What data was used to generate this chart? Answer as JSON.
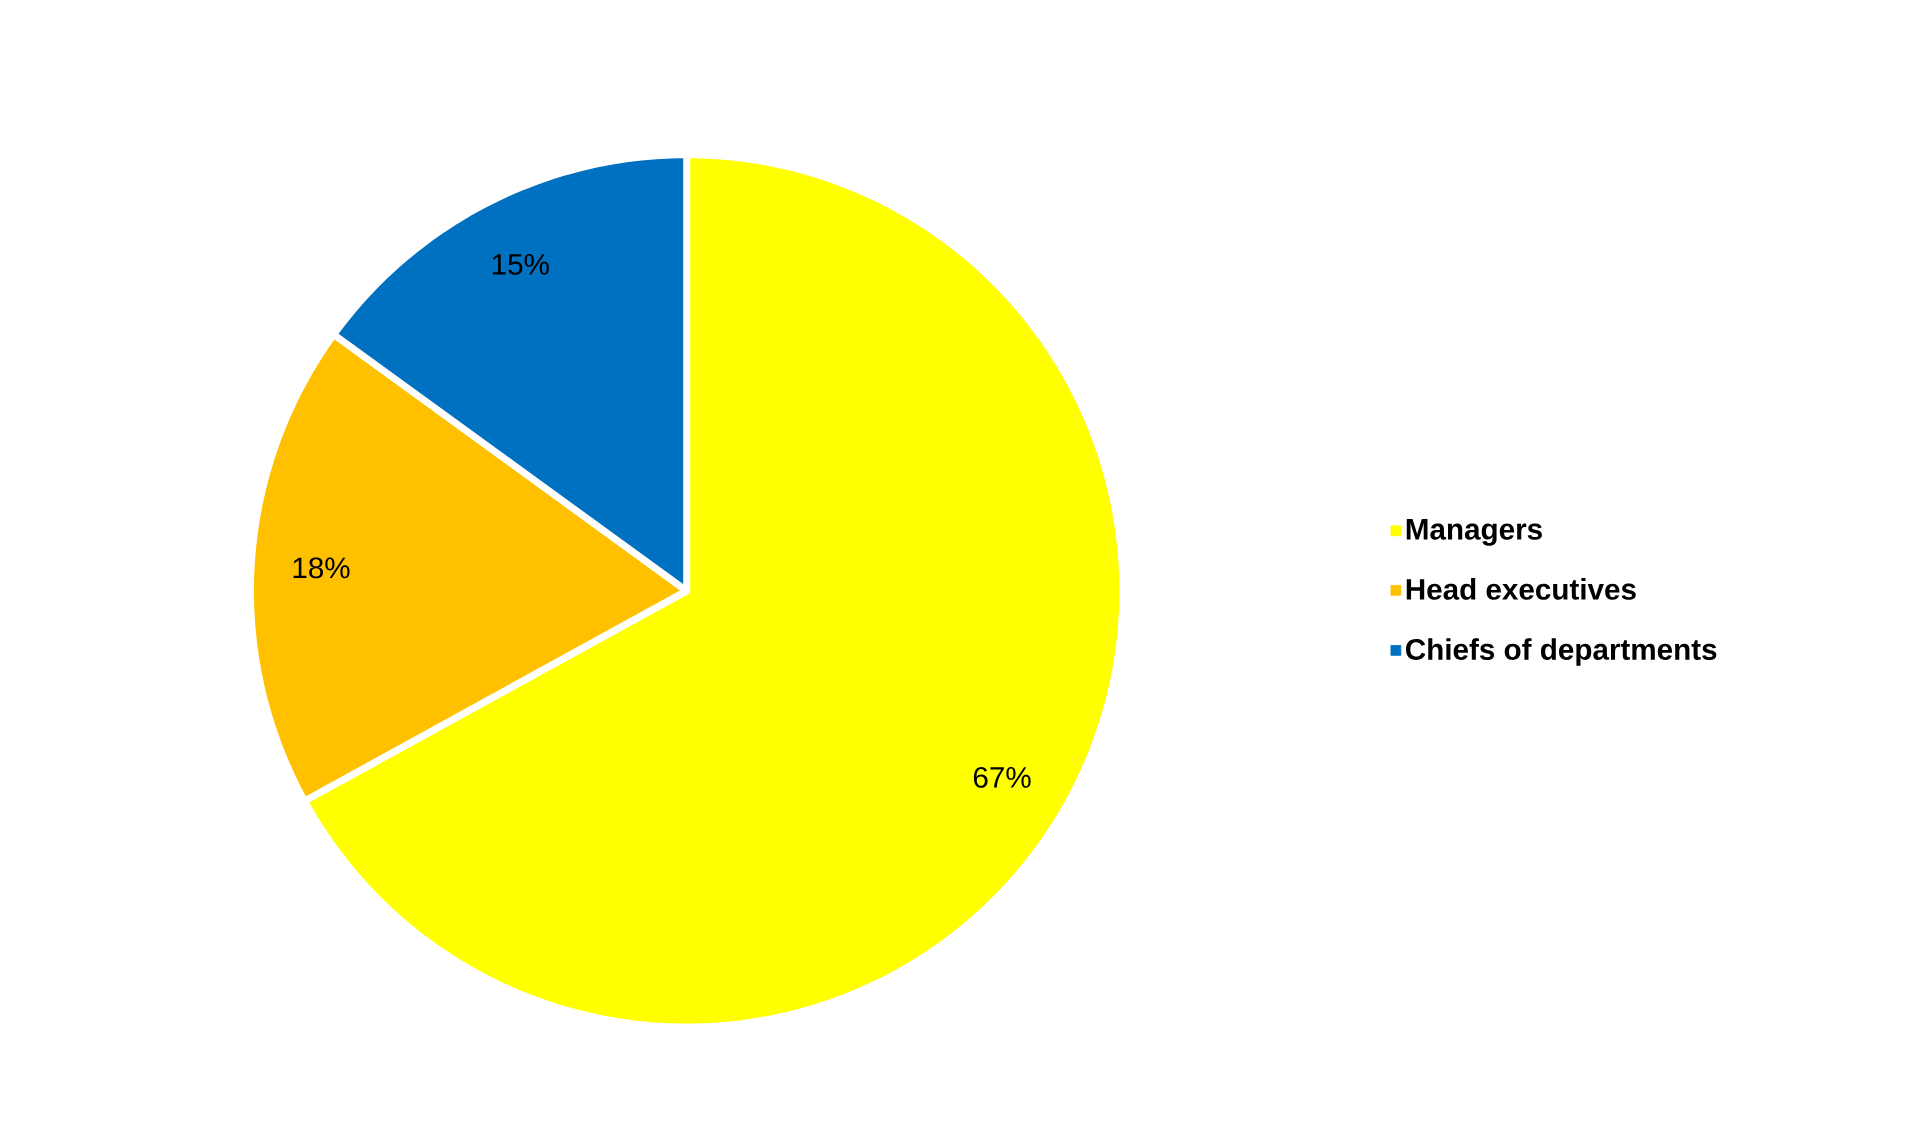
{
  "chart_data": {
    "type": "pie",
    "categories": [
      "Managers",
      "Head executives",
      "Chiefs of departments"
    ],
    "values": [
      67,
      18,
      15
    ],
    "colors": [
      "#ffff00",
      "#ffc000",
      "#0070c0"
    ],
    "value_labels": [
      "67%",
      "18%",
      "15%"
    ],
    "legend": "right"
  }
}
